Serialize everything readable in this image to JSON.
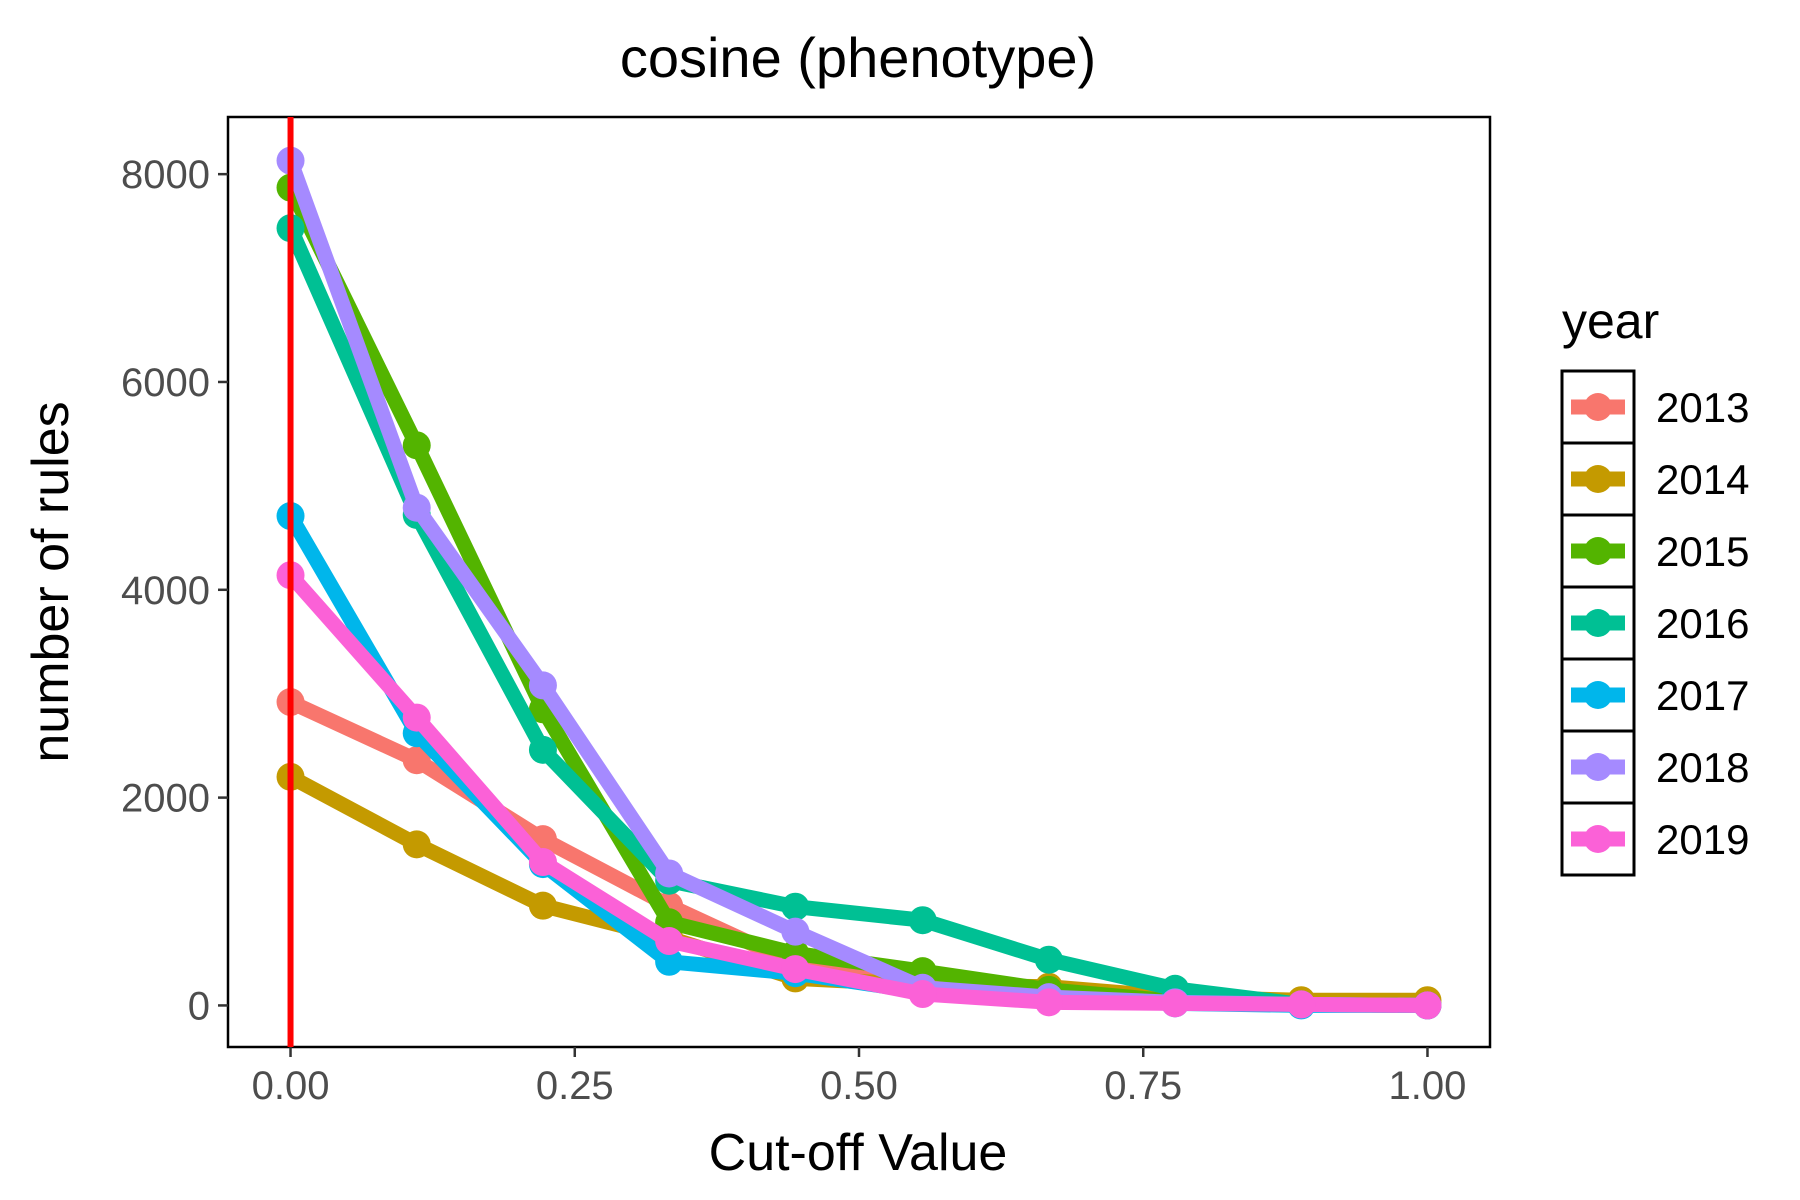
{
  "chart_data": {
    "type": "line",
    "title": "cosine (phenotype)",
    "xlabel": "Cut-off Value",
    "ylabel": "number of rules",
    "xlim": [
      -0.055,
      1.055
    ],
    "ylim": [
      -400,
      8550
    ],
    "x_ticks": [
      0,
      0.25,
      0.5,
      0.75,
      1
    ],
    "x_tick_labels": [
      "0.00",
      "0.25",
      "0.50",
      "0.75",
      "1.00"
    ],
    "y_ticks": [
      0,
      2000,
      4000,
      6000,
      8000
    ],
    "y_tick_labels": [
      "0",
      "2000",
      "4000",
      "6000",
      "8000"
    ],
    "grid": false,
    "vline": {
      "x": 0,
      "color": "#ff0000"
    },
    "legend": {
      "title": "year",
      "position": "right"
    },
    "x": [
      0,
      0.111,
      0.222,
      0.333,
      0.444,
      0.556,
      0.667,
      0.778,
      0.889,
      1.0
    ],
    "series": [
      {
        "name": "2013",
        "color": "#f8766d",
        "values": [
          2920,
          2360,
          1600,
          960,
          400,
          180,
          100,
          50,
          20,
          10
        ]
      },
      {
        "name": "2014",
        "color": "#c49a00",
        "values": [
          2200,
          1550,
          960,
          650,
          260,
          200,
          180,
          80,
          50,
          50
        ]
      },
      {
        "name": "2015",
        "color": "#53b400",
        "values": [
          7870,
          5390,
          2850,
          800,
          500,
          330,
          150,
          40,
          10,
          0
        ]
      },
      {
        "name": "2016",
        "color": "#00c094",
        "values": [
          7480,
          4720,
          2460,
          1200,
          950,
          820,
          440,
          160,
          10,
          0
        ]
      },
      {
        "name": "2017",
        "color": "#00b6eb",
        "values": [
          4710,
          2620,
          1360,
          420,
          310,
          130,
          50,
          20,
          0,
          0
        ]
      },
      {
        "name": "2018",
        "color": "#a58aff",
        "values": [
          8130,
          4790,
          3080,
          1270,
          710,
          170,
          80,
          30,
          10,
          0
        ]
      },
      {
        "name": "2019",
        "color": "#fb61d7",
        "values": [
          4140,
          2770,
          1380,
          620,
          350,
          110,
          30,
          20,
          10,
          0
        ]
      }
    ]
  }
}
